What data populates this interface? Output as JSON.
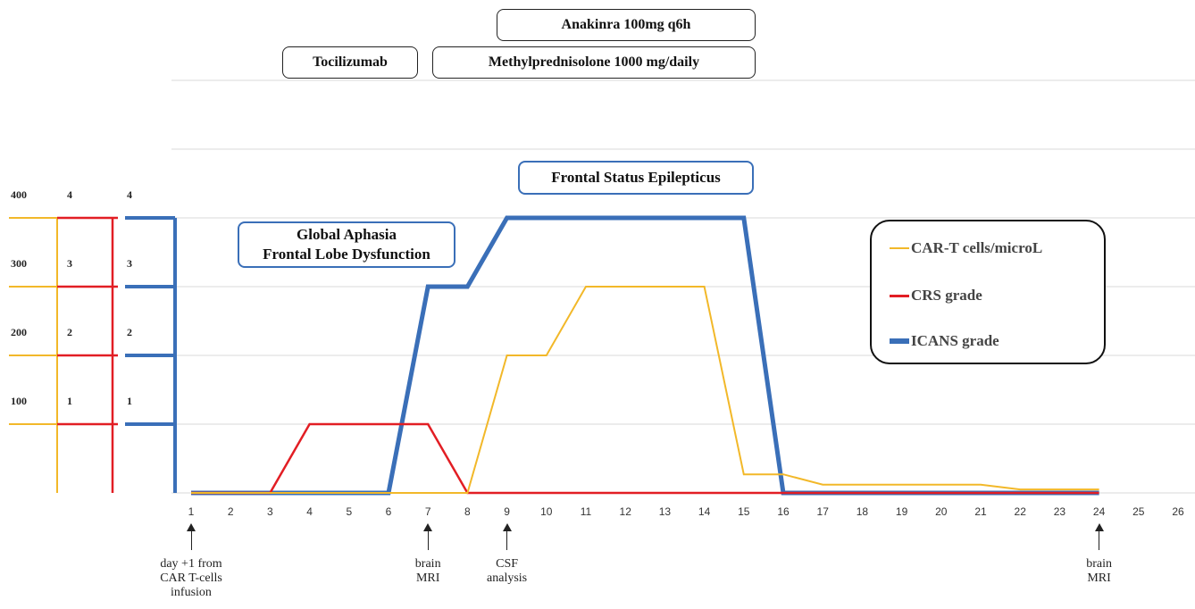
{
  "chart_data": {
    "type": "line",
    "title": "",
    "xlabel": "",
    "ylabel": "",
    "x": [
      1,
      2,
      3,
      4,
      5,
      6,
      7,
      8,
      9,
      10,
      11,
      12,
      13,
      14,
      15,
      16,
      17,
      18,
      19,
      20,
      21,
      22,
      23,
      24,
      25,
      26
    ],
    "xlim": [
      1,
      26
    ],
    "grade_ylim": [
      0,
      5
    ],
    "cells_ylim": [
      0,
      500
    ],
    "series": [
      {
        "name": "CAR-T cells/microL",
        "color": "#f2b829",
        "axis": "cells",
        "points": [
          [
            1,
            0
          ],
          [
            2,
            0
          ],
          [
            3,
            0
          ],
          [
            4,
            0
          ],
          [
            5,
            0
          ],
          [
            6,
            0
          ],
          [
            7,
            0
          ],
          [
            8,
            0
          ],
          [
            9,
            200
          ],
          [
            10,
            200
          ],
          [
            11,
            300
          ],
          [
            12,
            300
          ],
          [
            13,
            300
          ],
          [
            14,
            300
          ],
          [
            15,
            27
          ],
          [
            16,
            27
          ],
          [
            17,
            12
          ],
          [
            18,
            12
          ],
          [
            19,
            12
          ],
          [
            20,
            12
          ],
          [
            21,
            12
          ],
          [
            22,
            5
          ],
          [
            23,
            5
          ],
          [
            24,
            5
          ]
        ]
      },
      {
        "name": "CRS grade",
        "color": "#e21e24",
        "axis": "grade",
        "points": [
          [
            1,
            0
          ],
          [
            2,
            0
          ],
          [
            3,
            0
          ],
          [
            4,
            1
          ],
          [
            5,
            1
          ],
          [
            6,
            1
          ],
          [
            7,
            1
          ],
          [
            8,
            0
          ],
          [
            9,
            0
          ],
          [
            10,
            0
          ],
          [
            11,
            0
          ],
          [
            12,
            0
          ],
          [
            13,
            0
          ],
          [
            14,
            0
          ],
          [
            15,
            0
          ],
          [
            16,
            0
          ],
          [
            17,
            0
          ],
          [
            18,
            0
          ],
          [
            19,
            0
          ],
          [
            20,
            0
          ],
          [
            21,
            0
          ],
          [
            22,
            0
          ],
          [
            23,
            0
          ],
          [
            24,
            0
          ]
        ]
      },
      {
        "name": "ICANS grade",
        "color": "#3a6fb8",
        "axis": "grade",
        "points": [
          [
            1,
            0
          ],
          [
            2,
            0
          ],
          [
            3,
            0
          ],
          [
            4,
            0
          ],
          [
            5,
            0
          ],
          [
            6,
            0
          ],
          [
            7,
            3
          ],
          [
            8,
            3
          ],
          [
            9,
            4
          ],
          [
            10,
            4
          ],
          [
            11,
            4
          ],
          [
            12,
            4
          ],
          [
            13,
            4
          ],
          [
            14,
            4
          ],
          [
            15,
            4
          ],
          [
            16,
            0
          ],
          [
            17,
            0
          ],
          [
            18,
            0
          ],
          [
            19,
            0
          ],
          [
            20,
            0
          ],
          [
            21,
            0
          ],
          [
            22,
            0
          ],
          [
            23,
            0
          ],
          [
            24,
            0
          ]
        ]
      }
    ],
    "y_axis_ticks": {
      "cells": [
        "100",
        "200",
        "300",
        "400"
      ],
      "crs": [
        "1",
        "2",
        "3",
        "4"
      ],
      "icans": [
        "1",
        "2",
        "3",
        "4"
      ]
    },
    "grid": true,
    "legend_position": "right"
  },
  "treatments": {
    "anakinra": "Anakinra 100mg q6h",
    "tocilizumab": "Tocilizumab",
    "methylprednisolone": "Methylprednisolone 1000 mg/daily"
  },
  "events": {
    "aphasia_line1": "Global Aphasia",
    "aphasia_line2": "Frontal Lobe Dysfunction",
    "status_epilepticus": "Frontal Status Epilepticus"
  },
  "legend": {
    "cells": "CAR-T cells/microL",
    "crs": "CRS grade",
    "icans": "ICANS grade"
  },
  "annotations": [
    {
      "day": 1,
      "lines": [
        "day +1 from",
        "CAR T-cells",
        "infusion"
      ]
    },
    {
      "day": 7,
      "lines": [
        "brain",
        "MRI"
      ]
    },
    {
      "day": 9,
      "lines": [
        "CSF",
        "analysis"
      ]
    },
    {
      "day": 24,
      "lines": [
        "brain",
        "MRI"
      ]
    }
  ]
}
